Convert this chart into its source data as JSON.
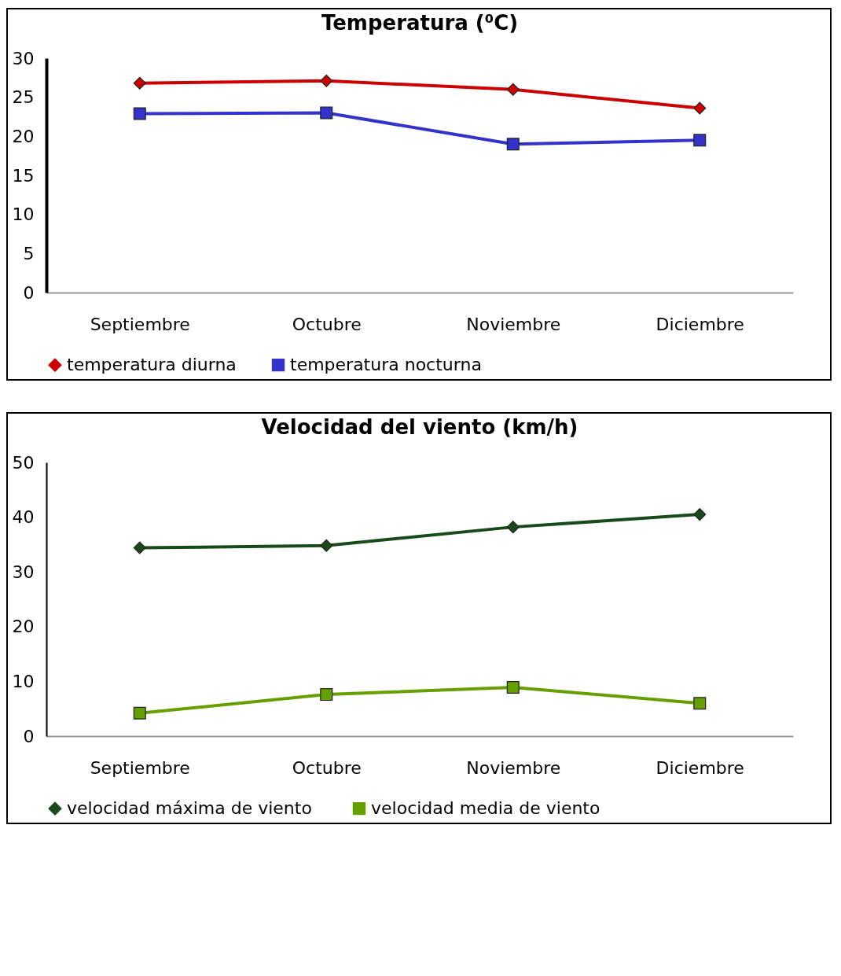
{
  "chart_data": [
    {
      "type": "line",
      "title": "Temperatura (⁰C)",
      "categories": [
        "Septiembre",
        "Octubre",
        "Noviembre",
        "Diciembre"
      ],
      "ylim": [
        0,
        30
      ],
      "yticks": [
        0,
        5,
        10,
        15,
        20,
        25,
        30
      ],
      "grid": false,
      "legend": "bottom",
      "series": [
        {
          "name": "temperatura diurna",
          "color": "#cc0000",
          "marker": "diamond",
          "values": [
            26.8,
            27.1,
            26.0,
            23.6
          ]
        },
        {
          "name": "temperatura nocturna",
          "color": "#3333cc",
          "marker": "square",
          "values": [
            22.9,
            23.0,
            19.0,
            19.5
          ]
        }
      ]
    },
    {
      "type": "line",
      "title": "Velocidad del viento (km/h)",
      "categories": [
        "Septiembre",
        "Octubre",
        "Noviembre",
        "Diciembre"
      ],
      "ylim": [
        0,
        50
      ],
      "yticks": [
        0,
        10,
        20,
        30,
        40,
        50
      ],
      "grid": false,
      "legend": "bottom",
      "series": [
        {
          "name": "velocidad máxima  de viento",
          "color": "#1a4a1a",
          "marker": "diamond",
          "values": [
            34.4,
            34.8,
            38.2,
            40.5
          ]
        },
        {
          "name": "velocidad media de viento",
          "color": "#66a000",
          "marker": "square",
          "values": [
            4.2,
            7.6,
            8.9,
            6.0
          ]
        }
      ]
    }
  ]
}
